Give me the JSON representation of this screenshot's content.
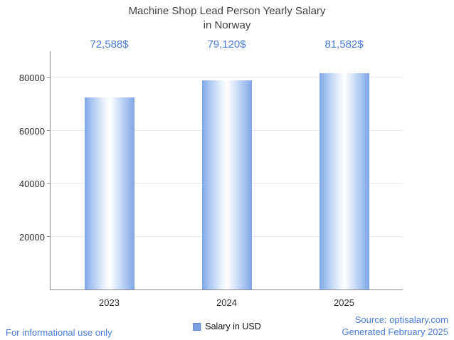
{
  "chart_data": {
    "type": "bar",
    "title": "Machine Shop Lead Person Yearly Salary in Norway",
    "title_line1": "Machine Shop Lead Person Yearly Salary",
    "title_line2": "in Norway",
    "categories": [
      "2023",
      "2024",
      "2025"
    ],
    "values": [
      72588,
      79120,
      81582
    ],
    "value_labels": [
      "72,588$",
      "79,120$",
      "81,582$"
    ],
    "series_name": "Salary in USD",
    "xlabel": "",
    "ylabel": "",
    "ylim": [
      0,
      90000
    ],
    "yticks": [
      20000,
      40000,
      60000,
      80000
    ],
    "grid": true,
    "legend_position": "bottom",
    "bar_edge_color": "#7fa6e6",
    "bar_center_color": "#ffffff"
  },
  "legend": {
    "label": "Salary in USD"
  },
  "footer": {
    "disclaimer": "For informational use only",
    "source": "Source: optisalary.com",
    "generated": "Generated February 2025"
  },
  "colors": {
    "accent": "#4a7cd6",
    "title": "#404040",
    "axis": "#8a8a8a",
    "grid": "#e8e8e8"
  }
}
